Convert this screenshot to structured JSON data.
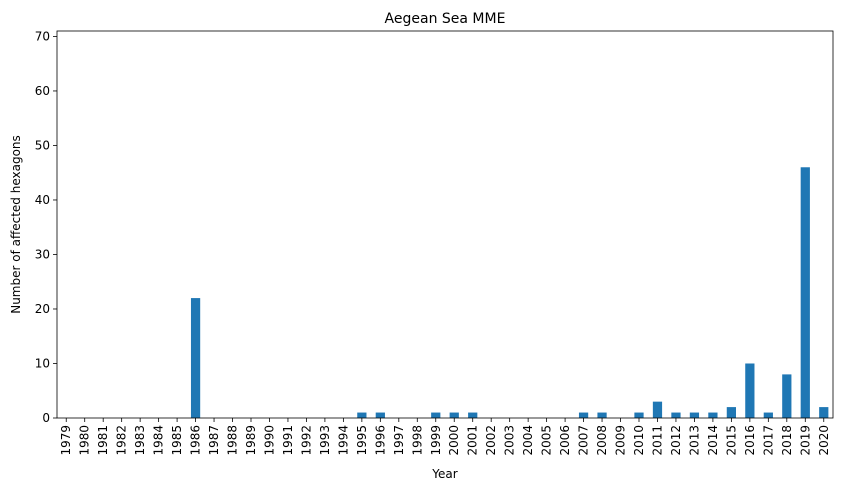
{
  "chart_data": {
    "type": "bar",
    "title": "Aegean Sea MME",
    "xlabel": "Year",
    "ylabel": "Number of affected hexagons",
    "ylim": [
      0,
      71
    ],
    "yticks": [
      0,
      10,
      20,
      30,
      40,
      50,
      60,
      70
    ],
    "categories": [
      "1979",
      "1980",
      "1981",
      "1982",
      "1983",
      "1984",
      "1985",
      "1986",
      "1987",
      "1988",
      "1989",
      "1990",
      "1991",
      "1992",
      "1993",
      "1994",
      "1995",
      "1996",
      "1997",
      "1998",
      "1999",
      "2000",
      "2001",
      "2002",
      "2003",
      "2004",
      "2005",
      "2006",
      "2007",
      "2008",
      "2009",
      "2010",
      "2011",
      "2012",
      "2013",
      "2014",
      "2015",
      "2016",
      "2017",
      "2018",
      "2019",
      "2020"
    ],
    "values": [
      0,
      0,
      0,
      0,
      0,
      0,
      0,
      22,
      0,
      0,
      0,
      0,
      0,
      0,
      0,
      0,
      1,
      1,
      0,
      0,
      1,
      1,
      1,
      0,
      0,
      0,
      0,
      0,
      1,
      1,
      0,
      1,
      3,
      1,
      1,
      1,
      2,
      10,
      1,
      8,
      46,
      2
    ],
    "bar_color": "#1f77b4",
    "grid": false,
    "legend": "none"
  }
}
